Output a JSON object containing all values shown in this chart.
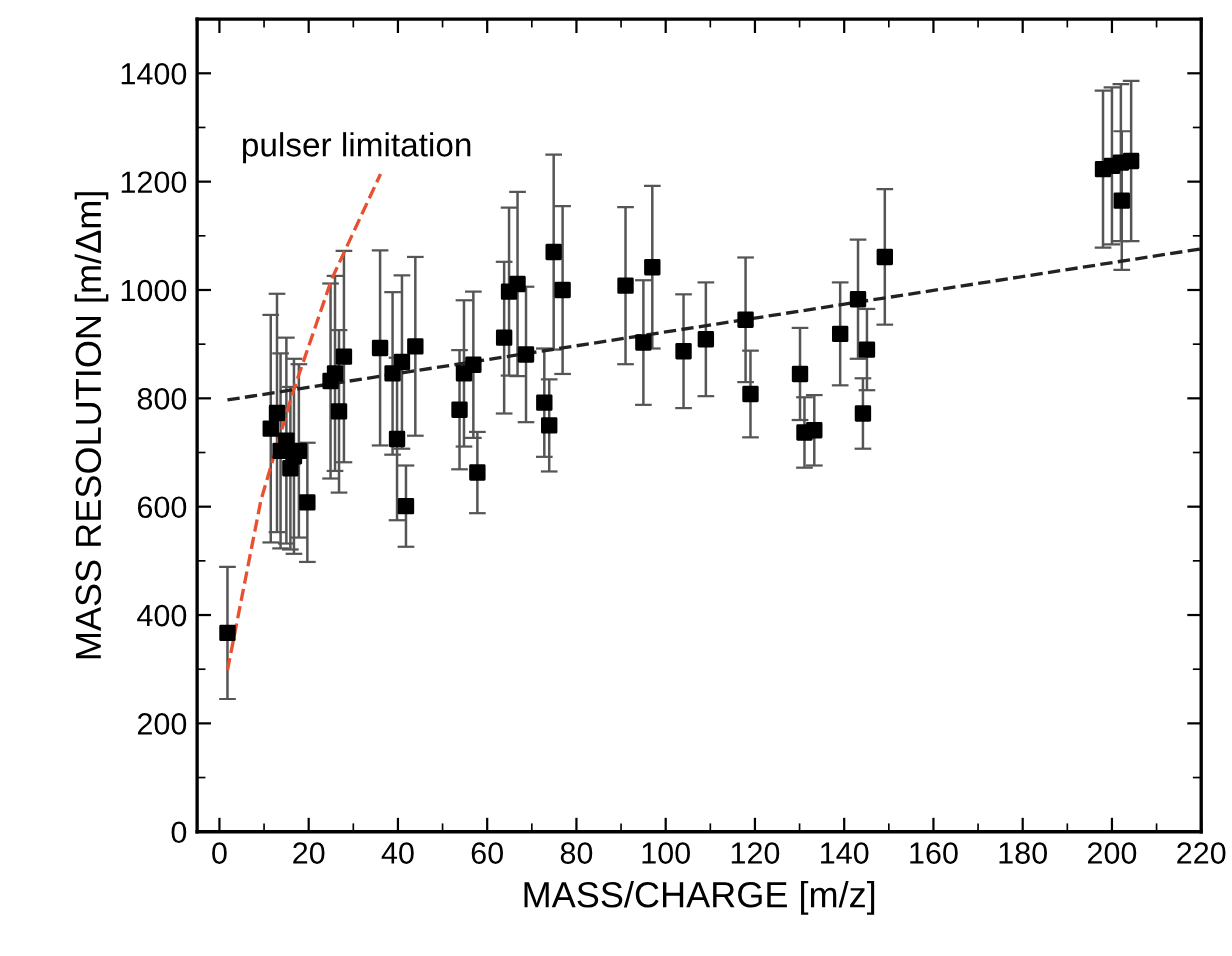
{
  "chart_data": {
    "type": "scatter",
    "xlabel": "MASS/CHARGE [m/z]",
    "ylabel": "MASS RESOLUTION [m/Δm]",
    "xlim": [
      -5,
      220
    ],
    "ylim": [
      0,
      1500
    ],
    "xticks": [
      0,
      20,
      40,
      60,
      80,
      100,
      120,
      140,
      160,
      180,
      200,
      220
    ],
    "yticks": [
      0,
      200,
      400,
      600,
      800,
      1000,
      1200,
      1400
    ],
    "grid": false,
    "marker": "square",
    "series": [
      {
        "color": "#000000",
        "x": [
          1.8,
          11.5,
          12.9,
          13.7,
          15,
          15.9,
          16.7,
          17.8,
          19.7,
          24.9,
          25.9,
          26.8,
          27.9,
          36,
          38.8,
          39.8,
          40.9,
          41.8,
          43.9,
          53.8,
          54.8,
          56.9,
          57.8,
          63.8,
          64.9,
          66.8,
          68.7,
          72.8,
          73.9,
          74.9,
          76.9,
          91,
          95,
          97,
          104,
          109,
          117.9,
          119,
          130.1,
          131.1,
          133.3,
          139.1,
          143.1,
          144.2,
          145.1,
          149.1,
          198,
          200,
          202,
          202.2,
          204.3
        ],
        "values": [
          367,
          744,
          773,
          703,
          722,
          671,
          693,
          703,
          608,
          832,
          846,
          776,
          877,
          893,
          846,
          725,
          867,
          601,
          896,
          779,
          846,
          862,
          663,
          912,
          997,
          1011,
          881,
          792,
          750,
          1070,
          1000,
          1008,
          903,
          1042,
          887,
          909,
          945,
          808,
          845,
          737,
          741,
          919,
          983,
          772,
          890,
          1061,
          1223,
          1229,
          1235,
          1165,
          1238
        ],
        "errors": [
          122,
          210,
          220,
          180,
          190,
          150,
          180,
          160,
          110,
          180,
          180,
          150,
          195,
          180,
          150,
          150,
          160,
          75,
          165,
          110,
          135,
          135,
          75,
          140,
          155,
          170,
          125,
          100,
          85,
          180,
          155,
          145,
          115,
          150,
          105,
          105,
          115,
          80,
          85,
          65,
          65,
          95,
          110,
          65,
          75,
          125,
          145,
          145,
          145,
          128,
          148
        ]
      },
      {
        "type": "line",
        "name": "pulser limitation",
        "color": "#e8512f",
        "line_style": "dashed",
        "marker": "none",
        "x": [
          1.8,
          9.3,
          16.4,
          25.2,
          36.1
        ],
        "values": [
          298,
          612,
          810,
          1021,
          1214
        ]
      },
      {
        "type": "line",
        "color": "#222222",
        "line_style": "dashed",
        "marker": "none",
        "x": [
          1.8,
          220
        ],
        "values": [
          797,
          1076
        ]
      }
    ]
  }
}
